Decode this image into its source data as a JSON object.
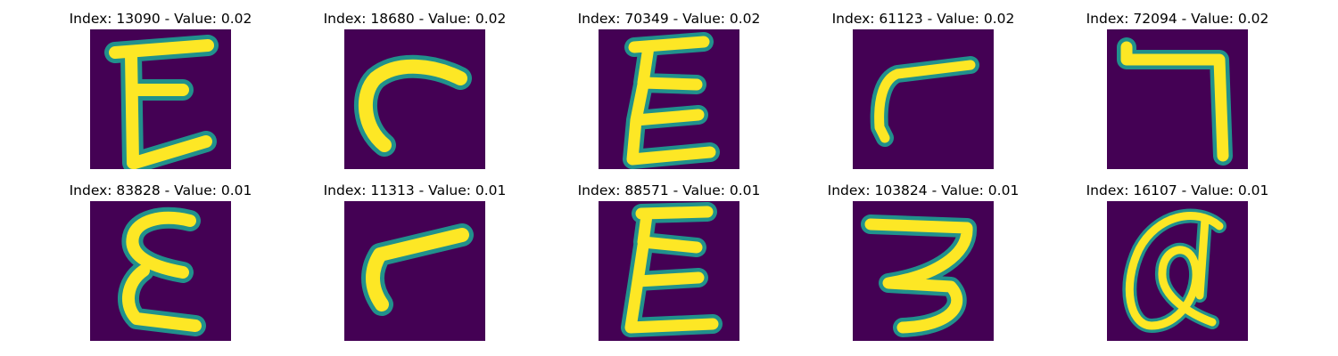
{
  "figure": {
    "panels": [
      {
        "title": "Index: 13090 - Value: 0.02",
        "glyph": "letter-E-like"
      },
      {
        "title": "Index: 18680 - Value: 0.02",
        "glyph": "curved-stroke"
      },
      {
        "title": "Index: 70349 - Value: 0.02",
        "glyph": "letter-E-like"
      },
      {
        "title": "Index: 61123 - Value: 0.02",
        "glyph": "angled-stroke"
      },
      {
        "title": "Index: 72094 - Value: 0.02",
        "glyph": "hook-stroke"
      },
      {
        "title": "Index: 83828 - Value: 0.01",
        "glyph": "letter-E-like"
      },
      {
        "title": "Index: 11313 - Value: 0.01",
        "glyph": "angled-stroke"
      },
      {
        "title": "Index: 88571 - Value: 0.01",
        "glyph": "letter-E-like"
      },
      {
        "title": "Index: 103824 - Value: 0.01",
        "glyph": "digit-3-like"
      },
      {
        "title": "Index: 16107 - Value: 0.01",
        "glyph": "at-sign-like"
      }
    ],
    "colors": {
      "background": "#440154",
      "stroke_core": "#fde725",
      "stroke_edge": "#21918c",
      "stroke_mid": "#5ec962"
    }
  }
}
